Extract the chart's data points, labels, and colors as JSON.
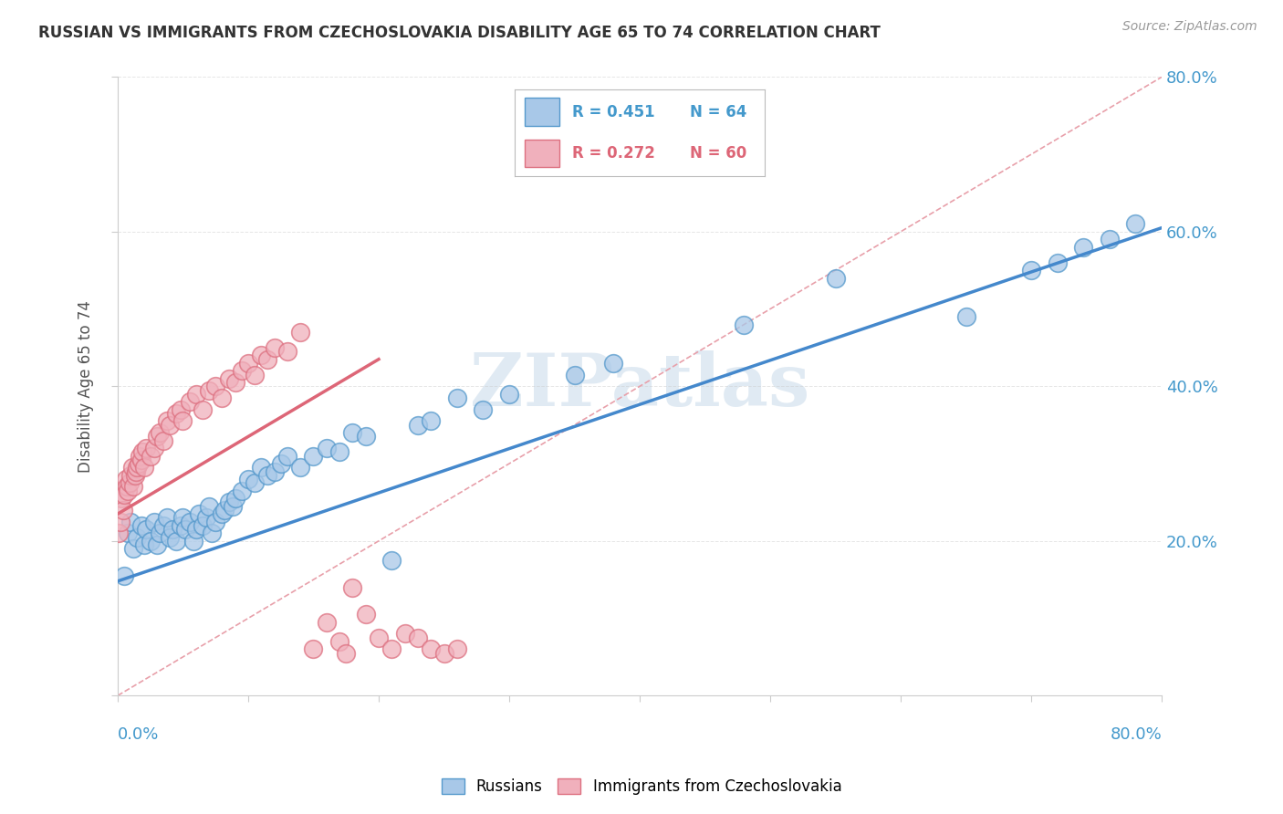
{
  "title": "RUSSIAN VS IMMIGRANTS FROM CZECHOSLOVAKIA DISABILITY AGE 65 TO 74 CORRELATION CHART",
  "source": "Source: ZipAtlas.com",
  "ylabel": "Disability Age 65 to 74",
  "xlim": [
    0.0,
    0.8
  ],
  "ylim": [
    0.0,
    0.8
  ],
  "legend_r1": "R = 0.451",
  "legend_n1": "N = 64",
  "legend_r2": "R = 0.272",
  "legend_n2": "N = 60",
  "legend_label1": "Russians",
  "legend_label2": "Immigrants from Czechoslovakia",
  "color_blue_fill": "#a8c8e8",
  "color_blue_edge": "#5599cc",
  "color_pink_fill": "#f0b0bc",
  "color_pink_edge": "#dd7080",
  "color_blue_line": "#4488cc",
  "color_pink_line": "#dd6677",
  "color_blue_text": "#4499cc",
  "color_dashed": "#e8a0aa",
  "color_grid": "#cccccc",
  "watermark": "ZIPatlas",
  "blue_x": [
    0.005,
    0.008,
    0.01,
    0.012,
    0.015,
    0.018,
    0.02,
    0.022,
    0.025,
    0.028,
    0.03,
    0.032,
    0.035,
    0.038,
    0.04,
    0.042,
    0.045,
    0.048,
    0.05,
    0.052,
    0.055,
    0.058,
    0.06,
    0.062,
    0.065,
    0.068,
    0.07,
    0.072,
    0.075,
    0.08,
    0.082,
    0.085,
    0.088,
    0.09,
    0.095,
    0.1,
    0.105,
    0.11,
    0.115,
    0.12,
    0.125,
    0.13,
    0.14,
    0.15,
    0.16,
    0.17,
    0.18,
    0.19,
    0.21,
    0.23,
    0.24,
    0.26,
    0.28,
    0.3,
    0.35,
    0.38,
    0.48,
    0.55,
    0.65,
    0.7,
    0.72,
    0.74,
    0.76,
    0.78
  ],
  "blue_y": [
    0.155,
    0.21,
    0.225,
    0.19,
    0.205,
    0.22,
    0.195,
    0.215,
    0.2,
    0.225,
    0.195,
    0.21,
    0.22,
    0.23,
    0.205,
    0.215,
    0.2,
    0.22,
    0.23,
    0.215,
    0.225,
    0.2,
    0.215,
    0.235,
    0.22,
    0.23,
    0.245,
    0.21,
    0.225,
    0.235,
    0.24,
    0.25,
    0.245,
    0.255,
    0.265,
    0.28,
    0.275,
    0.295,
    0.285,
    0.29,
    0.3,
    0.31,
    0.295,
    0.31,
    0.32,
    0.315,
    0.34,
    0.335,
    0.175,
    0.35,
    0.355,
    0.385,
    0.37,
    0.39,
    0.415,
    0.43,
    0.48,
    0.54,
    0.49,
    0.55,
    0.56,
    0.58,
    0.59,
    0.61
  ],
  "pink_x": [
    0.001,
    0.002,
    0.003,
    0.004,
    0.005,
    0.006,
    0.007,
    0.008,
    0.009,
    0.01,
    0.011,
    0.012,
    0.013,
    0.014,
    0.015,
    0.016,
    0.017,
    0.018,
    0.019,
    0.02,
    0.022,
    0.025,
    0.028,
    0.03,
    0.032,
    0.035,
    0.038,
    0.04,
    0.045,
    0.048,
    0.05,
    0.055,
    0.06,
    0.065,
    0.07,
    0.075,
    0.08,
    0.085,
    0.09,
    0.095,
    0.1,
    0.105,
    0.11,
    0.115,
    0.12,
    0.13,
    0.14,
    0.15,
    0.16,
    0.17,
    0.175,
    0.18,
    0.19,
    0.2,
    0.21,
    0.22,
    0.23,
    0.24,
    0.25,
    0.26
  ],
  "pink_y": [
    0.21,
    0.225,
    0.255,
    0.24,
    0.26,
    0.28,
    0.27,
    0.265,
    0.275,
    0.285,
    0.295,
    0.27,
    0.285,
    0.29,
    0.295,
    0.3,
    0.31,
    0.305,
    0.315,
    0.295,
    0.32,
    0.31,
    0.32,
    0.335,
    0.34,
    0.33,
    0.355,
    0.35,
    0.365,
    0.37,
    0.355,
    0.38,
    0.39,
    0.37,
    0.395,
    0.4,
    0.385,
    0.41,
    0.405,
    0.42,
    0.43,
    0.415,
    0.44,
    0.435,
    0.45,
    0.445,
    0.47,
    0.06,
    0.095,
    0.07,
    0.055,
    0.14,
    0.105,
    0.075,
    0.06,
    0.08,
    0.075,
    0.06,
    0.055,
    0.06
  ],
  "blue_line_x0": 0.0,
  "blue_line_x1": 0.8,
  "blue_line_y0": 0.148,
  "blue_line_y1": 0.605,
  "pink_line_x0": 0.0,
  "pink_line_x1": 0.2,
  "pink_line_y0": 0.235,
  "pink_line_y1": 0.435
}
